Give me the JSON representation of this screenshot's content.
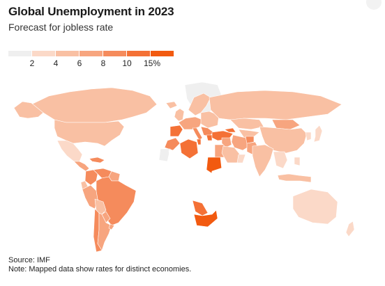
{
  "header": {
    "title": "Global Unemployment in 2023",
    "subtitle": "Forecast for jobless rate"
  },
  "legend": {
    "colors": [
      "#efefef",
      "#fbd9c8",
      "#f9c0a3",
      "#f7a57f",
      "#f58b5c",
      "#f47136",
      "#f25a10"
    ],
    "labels": [
      "2",
      "4",
      "6",
      "8",
      "10",
      "15%"
    ]
  },
  "map": {
    "no_data_color": "#ffffff",
    "regions": [
      {
        "name": "canada",
        "level": 2
      },
      {
        "name": "alaska",
        "level": 2
      },
      {
        "name": "greenland",
        "level": 0
      },
      {
        "name": "united-states",
        "level": 2
      },
      {
        "name": "mexico",
        "level": 1
      },
      {
        "name": "central-america",
        "level": 3
      },
      {
        "name": "caribbean",
        "level": 4
      },
      {
        "name": "colombia",
        "level": 4
      },
      {
        "name": "venezuela",
        "level": 4
      },
      {
        "name": "guyanas",
        "level": 3
      },
      {
        "name": "ecuador",
        "level": 2
      },
      {
        "name": "peru",
        "level": 3
      },
      {
        "name": "brazil",
        "level": 4
      },
      {
        "name": "bolivia",
        "level": 2
      },
      {
        "name": "paraguay",
        "level": 3
      },
      {
        "name": "chile",
        "level": 4
      },
      {
        "name": "argentina",
        "level": 3
      },
      {
        "name": "uruguay",
        "level": 3
      },
      {
        "name": "iceland",
        "level": 2
      },
      {
        "name": "uk-ireland",
        "level": 2
      },
      {
        "name": "scandinavia",
        "level": 2
      },
      {
        "name": "western-europe",
        "level": 3
      },
      {
        "name": "iberia",
        "level": 5
      },
      {
        "name": "italy",
        "level": 4
      },
      {
        "name": "eastern-europe",
        "level": 2
      },
      {
        "name": "balkans",
        "level": 4
      },
      {
        "name": "greece",
        "level": 5
      },
      {
        "name": "turkey",
        "level": 5
      },
      {
        "name": "russia",
        "level": 2
      },
      {
        "name": "kazakhstan",
        "level": 2
      },
      {
        "name": "central-asia",
        "level": 2
      },
      {
        "name": "caucasus",
        "level": 5
      },
      {
        "name": "mongolia",
        "level": 3
      },
      {
        "name": "china",
        "level": 2
      },
      {
        "name": "korea",
        "level": 1
      },
      {
        "name": "japan",
        "level": 1
      },
      {
        "name": "morocco",
        "level": 4
      },
      {
        "name": "algeria",
        "level": 5
      },
      {
        "name": "tunisia",
        "level": 5
      },
      {
        "name": "libya",
        "level": -1
      },
      {
        "name": "egypt",
        "level": 3
      },
      {
        "name": "west-sahara",
        "level": 0
      },
      {
        "name": "sahel",
        "level": -1
      },
      {
        "name": "sudan",
        "level": 6
      },
      {
        "name": "west-africa",
        "level": -1
      },
      {
        "name": "central-africa",
        "level": -1
      },
      {
        "name": "east-africa",
        "level": -1
      },
      {
        "name": "southern-africa-middle",
        "level": -1
      },
      {
        "name": "botswana-namibia",
        "level": 5
      },
      {
        "name": "south-africa",
        "level": 6
      },
      {
        "name": "madagascar",
        "level": -1
      },
      {
        "name": "middle-east",
        "level": 3
      },
      {
        "name": "iran",
        "level": 3
      },
      {
        "name": "saudi-arabia",
        "level": 2
      },
      {
        "name": "yemen",
        "level": -1
      },
      {
        "name": "oman",
        "level": 1
      },
      {
        "name": "afghanistan",
        "level": 4
      },
      {
        "name": "pakistan",
        "level": 3
      },
      {
        "name": "india",
        "level": 2
      },
      {
        "name": "southeast-asia",
        "level": 1
      },
      {
        "name": "philippines",
        "level": 1
      },
      {
        "name": "indonesia",
        "level": 2
      },
      {
        "name": "australia",
        "level": 1
      },
      {
        "name": "new-zealand",
        "level": 1
      },
      {
        "name": "papua",
        "level": -1
      }
    ]
  },
  "footer": {
    "source": "Source: IMF",
    "note": "Note: Mapped data show rates for distinct economies."
  }
}
